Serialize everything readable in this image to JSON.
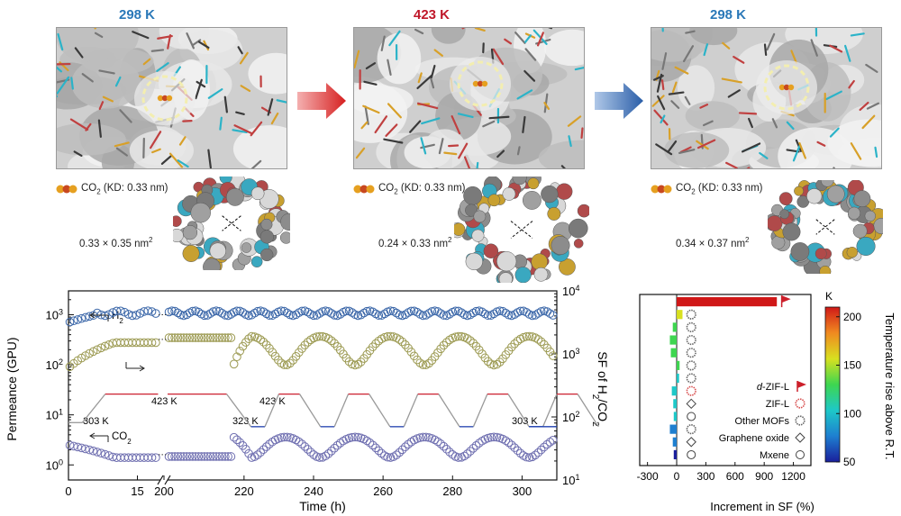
{
  "panels": [
    {
      "temperature": "298 K",
      "temp_color": "#2a78b8",
      "gas_label": "CO",
      "gas_sub": "2",
      "gas_note": " (KD: 0.33 nm)",
      "pore_size": "0.33 × 0.35 nm",
      "pore_sup": "2"
    },
    {
      "temperature": "423 K",
      "temp_color": "#c0182a",
      "gas_label": "CO",
      "gas_sub": "2",
      "gas_note": " (KD: 0.33 nm)",
      "pore_size": "0.24 × 0.33 nm",
      "pore_sup": "2"
    },
    {
      "temperature": "298 K",
      "temp_color": "#2a78b8",
      "gas_label": "CO",
      "gas_sub": "2",
      "gas_note": " (KD: 0.33 nm)",
      "pore_size": "0.34 × 0.37 nm",
      "pore_sup": "2"
    }
  ],
  "colors": {
    "h2_series": "#3a66a8",
    "ratio_series": "#9c9a52",
    "co2_series": "#6f6fb0",
    "heat_line": "#cc2030",
    "cool_line": "#2040b0",
    "ramp_line": "#999999",
    "arrow_red": "#d62020",
    "arrow_blue": "#2a5ea8"
  },
  "chart_data": [
    {
      "type": "scatter",
      "xlabel": "Time (h)",
      "ylabel_left": "Permeance (GPU)",
      "ylabel_right_parts": [
        "SF of H",
        "2",
        "/CO",
        "2"
      ],
      "x_ticks_left_segment": [
        "0",
        "15",
        "200"
      ],
      "x_ticks_right_segment": [
        "220",
        "240",
        "260",
        "280",
        "300"
      ],
      "x_break": [
        20,
        198
      ],
      "xlim_segments": [
        [
          0,
          20
        ],
        [
          198,
          310
        ]
      ],
      "y_left_log_range": [
        0.5,
        3000
      ],
      "y_left_ticks": [
        {
          "base": "10",
          "exp": "0"
        },
        {
          "base": "10",
          "exp": "1"
        },
        {
          "base": "10",
          "exp": "2"
        },
        {
          "base": "10",
          "exp": "3"
        }
      ],
      "y_right_log_range": [
        10,
        10000
      ],
      "y_right_ticks": [
        {
          "base": "10",
          "exp": "1"
        },
        {
          "base": "10",
          "exp": "2"
        },
        {
          "base": "10",
          "exp": "3"
        },
        {
          "base": "10",
          "exp": "4"
        }
      ],
      "series_labels": {
        "h2": {
          "main": "H",
          "sub": "2"
        },
        "co2": {
          "main": "CO",
          "sub": "2"
        }
      },
      "temperature_annotations": [
        "303 K",
        "423 K",
        "423 K",
        "323 K",
        "303 K"
      ],
      "cycle_period_h": 20,
      "series": [
        {
          "name": "H2",
          "axis": "left",
          "mean_gpu": 1000,
          "initial_gpu": 700
        },
        {
          "name": "SF of H2/CO2",
          "axis": "right",
          "low": 600,
          "high": 1900
        },
        {
          "name": "CO2",
          "axis": "left",
          "low_gpu": 1.4,
          "high_gpu": 3.6
        }
      ]
    },
    {
      "type": "bar",
      "orientation": "horizontal",
      "xlabel": "Increment in SF (%)",
      "x_ticks": [
        "-300",
        "0",
        "300",
        "600",
        "900",
        "1200"
      ],
      "xlim": [
        -380,
        1380
      ],
      "colorbar": {
        "unit": "K",
        "label": "Temperature rise above R.T.",
        "range": [
          50,
          210
        ],
        "ticks": [
          "50",
          "100",
          "150",
          "200"
        ]
      },
      "bars": [
        {
          "value": 1030,
          "temp_rise": 205
        },
        {
          "value": 60,
          "temp_rise": 160
        },
        {
          "value": -40,
          "temp_rise": 140
        },
        {
          "value": -70,
          "temp_rise": 135
        },
        {
          "value": -60,
          "temp_rise": 130
        },
        {
          "value": 30,
          "temp_rise": 120
        },
        {
          "value": 25,
          "temp_rise": 110
        },
        {
          "value": -50,
          "temp_rise": 100
        },
        {
          "value": -35,
          "temp_rise": 95
        },
        {
          "value": -30,
          "temp_rise": 90
        },
        {
          "value": -70,
          "temp_rise": 85
        },
        {
          "value": -40,
          "temp_rise": 75
        },
        {
          "value": -30,
          "temp_rise": 60
        }
      ],
      "markers": [
        {
          "value": 1080,
          "kind": "d-ZIF-L"
        },
        {
          "value": 150,
          "kind": "Other MOFs"
        },
        {
          "value": 150,
          "kind": "Other MOFs"
        },
        {
          "value": 150,
          "kind": "Other MOFs"
        },
        {
          "value": 150,
          "kind": "Other MOFs"
        },
        {
          "value": 150,
          "kind": "Other MOFs"
        },
        {
          "value": 150,
          "kind": "Other MOFs"
        },
        {
          "value": 150,
          "kind": "ZIF-L"
        },
        {
          "value": 150,
          "kind": "Graphene oxide"
        },
        {
          "value": 150,
          "kind": "Mxene"
        },
        {
          "value": 150,
          "kind": "Other MOFs"
        },
        {
          "value": 150,
          "kind": "Graphene oxide"
        },
        {
          "value": 150,
          "kind": "Mxene"
        }
      ],
      "legend": [
        {
          "prefix": "d",
          "label": "-ZIF-L",
          "marker": "flag",
          "color": "#cc1f2a"
        },
        {
          "prefix": "",
          "label": "ZIF-L",
          "marker": "circle-dotted",
          "color": "#d85050"
        },
        {
          "prefix": "",
          "label": "Other MOFs",
          "marker": "circle-dotted",
          "color": "#666666"
        },
        {
          "prefix": "",
          "label": "Graphene oxide",
          "marker": "diamond",
          "color": "#444444"
        },
        {
          "prefix": "",
          "label": "Mxene",
          "marker": "circle",
          "color": "#444444"
        }
      ]
    }
  ]
}
